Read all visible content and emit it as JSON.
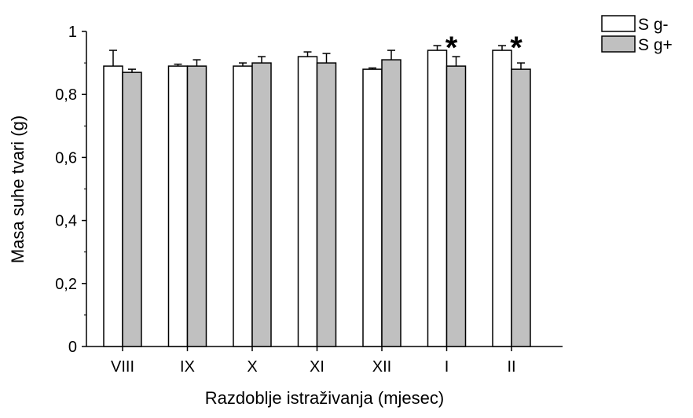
{
  "chart_data": {
    "type": "bar",
    "categories": [
      "VIII",
      "IX",
      "X",
      "XI",
      "XII",
      "I",
      "II"
    ],
    "series": [
      {
        "name": "S g-",
        "color": "#ffffff",
        "values": [
          0.89,
          0.89,
          0.89,
          0.92,
          0.88,
          0.94,
          0.94
        ],
        "errors": [
          0.05,
          0.006,
          0.01,
          0.015,
          0.004,
          0.015,
          0.015
        ]
      },
      {
        "name": "S g+",
        "color": "#c0c0c0",
        "values": [
          0.87,
          0.89,
          0.9,
          0.9,
          0.91,
          0.89,
          0.88
        ],
        "errors": [
          0.01,
          0.02,
          0.02,
          0.03,
          0.03,
          0.03,
          0.02
        ]
      }
    ],
    "significance_marker": "*",
    "significant_categories": [
      "I",
      "II"
    ],
    "xlabel": "Razdoblje istraživanja (mjesec)",
    "ylabel": "Masa suhe tvari (g)",
    "ylim": [
      0,
      1
    ],
    "yticks": [
      0,
      0.2,
      0.4,
      0.6,
      0.8,
      1
    ],
    "ytick_labels": [
      "0",
      "0,2",
      "0,4",
      "0,6",
      "0,8",
      "1"
    ],
    "grid": false,
    "legend_position": "top-right"
  }
}
